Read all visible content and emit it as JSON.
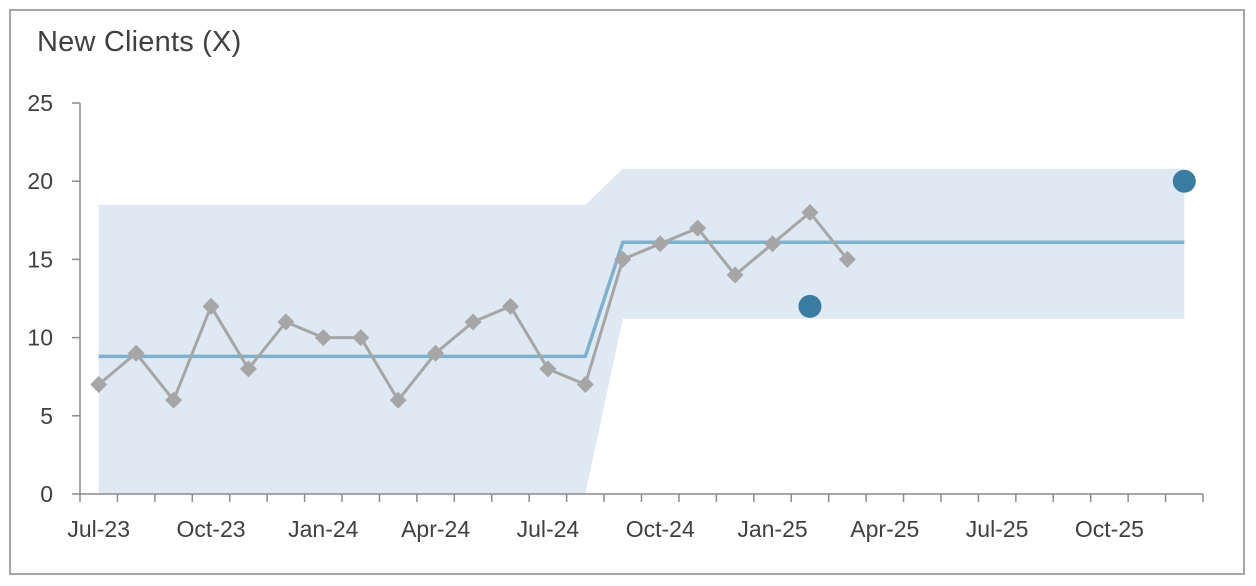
{
  "chart_data": {
    "type": "line",
    "title": "New Clients (X)",
    "xlabel": "",
    "ylabel": "",
    "ylim": [
      0,
      25
    ],
    "yticks": [
      0,
      5,
      10,
      15,
      20,
      25
    ],
    "xlim": [
      "2023-07",
      "2025-12"
    ],
    "xtick_labels": [
      "Jul-23",
      "Oct-23",
      "Jan-24",
      "Apr-24",
      "Jul-24",
      "Oct-24",
      "Jan-25",
      "Apr-25",
      "Jul-25",
      "Oct-25"
    ],
    "grid": false,
    "legend": "none",
    "series": [
      {
        "role": "observed",
        "x": [
          "2023-07",
          "2023-08",
          "2023-09",
          "2023-10",
          "2023-11",
          "2023-12",
          "2024-01",
          "2024-02",
          "2024-03",
          "2024-04",
          "2024-05",
          "2024-06",
          "2024-07",
          "2024-08",
          "2024-09",
          "2024-10",
          "2024-11",
          "2024-12",
          "2025-01",
          "2025-02",
          "2025-03"
        ],
        "values": [
          7,
          9,
          6,
          12,
          8,
          11,
          10,
          10,
          6,
          9,
          11,
          12,
          8,
          7,
          15,
          16,
          17,
          14,
          16,
          18,
          15
        ]
      },
      {
        "role": "mean",
        "x": [
          "2023-07",
          "2024-08",
          "2024-09",
          "2025-12"
        ],
        "values": [
          8.8,
          8.8,
          16.1,
          16.1
        ]
      },
      {
        "role": "upper_limit",
        "x": [
          "2023-07",
          "2024-08",
          "2024-09",
          "2025-12"
        ],
        "values": [
          18.5,
          18.5,
          20.8,
          20.8
        ]
      },
      {
        "role": "lower_limit",
        "x": [
          "2023-07",
          "2024-08",
          "2024-09",
          "2025-12"
        ],
        "values": [
          0,
          0,
          11.2,
          11.2
        ]
      },
      {
        "role": "highlighted",
        "x": [
          "2025-02",
          "2025-12"
        ],
        "values": [
          12,
          20
        ]
      }
    ],
    "colors": {
      "band": "#dfe9f3",
      "mean_line": "#7fb0cc",
      "observed": "#a6a6a6",
      "highlight": "#3b7da0",
      "axis": "#8c8c8c",
      "text": "#404040"
    }
  }
}
